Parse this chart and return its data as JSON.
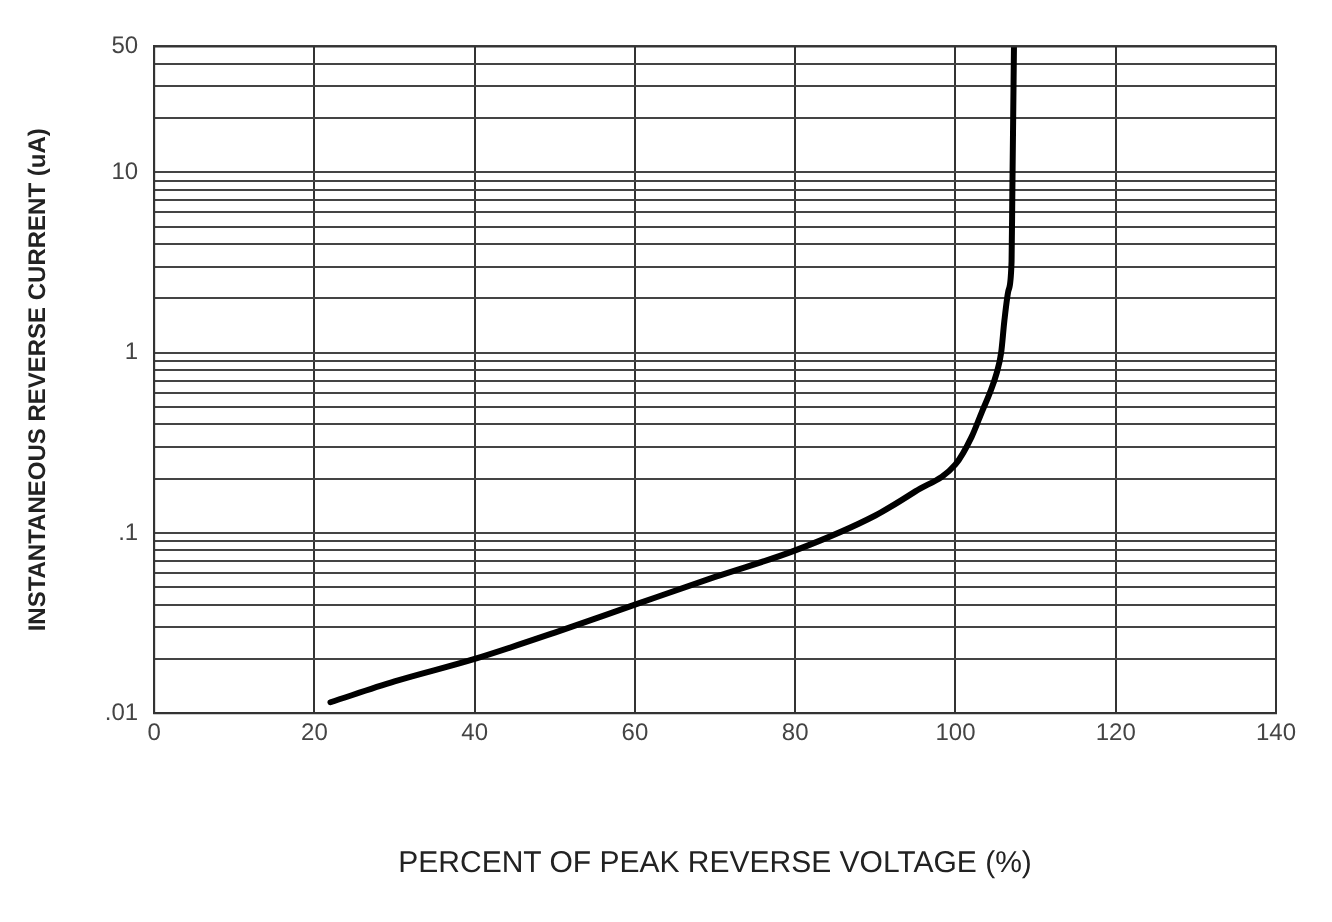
{
  "chart_data": {
    "type": "line",
    "xlabel": "PERCENT OF PEAK REVERSE VOLTAGE (%)",
    "ylabel": "INSTANTANEOUS REVERSE CURRENT (uA)",
    "log": "y",
    "grid": true,
    "legend": false,
    "marker": "none",
    "line_style": "solid",
    "xlim": [
      0,
      140
    ],
    "xticks": [
      0,
      20,
      40,
      60,
      80,
      100,
      120,
      140
    ],
    "ylim": [
      0.01,
      50
    ],
    "yticks": [
      {
        "value": 0.01,
        "label": ".01"
      },
      {
        "value": 0.02,
        "label": null
      },
      {
        "value": 0.03,
        "label": null
      },
      {
        "value": 0.04,
        "label": null
      },
      {
        "value": 0.05,
        "label": null
      },
      {
        "value": 0.06,
        "label": null
      },
      {
        "value": 0.07,
        "label": null
      },
      {
        "value": 0.08,
        "label": null
      },
      {
        "value": 0.09,
        "label": null
      },
      {
        "value": 0.1,
        "label": ".1"
      },
      {
        "value": 0.2,
        "label": null
      },
      {
        "value": 0.3,
        "label": null
      },
      {
        "value": 0.4,
        "label": null
      },
      {
        "value": 0.5,
        "label": null
      },
      {
        "value": 0.6,
        "label": null
      },
      {
        "value": 0.7,
        "label": null
      },
      {
        "value": 0.8,
        "label": null
      },
      {
        "value": 0.9,
        "label": null
      },
      1,
      {
        "value": 2,
        "label": null
      },
      {
        "value": 3,
        "label": null
      },
      {
        "value": 4,
        "label": null
      },
      {
        "value": 5,
        "label": null
      },
      {
        "value": 6,
        "label": null
      },
      {
        "value": 7,
        "label": null
      },
      {
        "value": 8,
        "label": null
      },
      {
        "value": 9,
        "label": null
      },
      10,
      {
        "value": 20,
        "label": null
      },
      {
        "value": 30,
        "label": null
      },
      {
        "value": 40,
        "label": null
      },
      50
    ],
    "series": [
      {
        "color": "#000000",
        "x": [
          22,
          30,
          40,
          50,
          60,
          70,
          80,
          90,
          95,
          100,
          102,
          103.3,
          104.3,
          105.1,
          105.7,
          106.1,
          106.6,
          107,
          107.1,
          107.2,
          107.3
        ],
        "values": [
          0.0115,
          0.015,
          0.02,
          0.028,
          0.04,
          0.057,
          0.08,
          0.125,
          0.17,
          0.24,
          0.34,
          0.47,
          0.6,
          0.76,
          1.0,
          1.5,
          2.2,
          3.2,
          8,
          20,
          50
        ]
      }
    ]
  }
}
